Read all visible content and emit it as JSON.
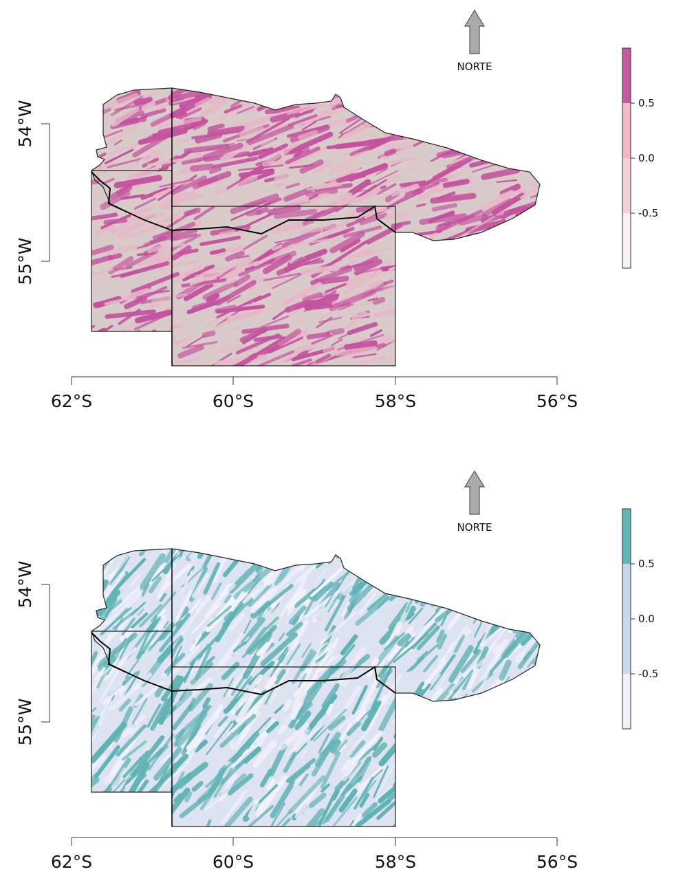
{
  "panels": [
    {
      "north": "NORTE",
      "x_labels": [
        "62°S",
        "60°S",
        "58°S",
        "56°S"
      ],
      "y_labels": [
        "54°W",
        "55°W"
      ],
      "legend": {
        "colors": [
          "#c45aa2",
          "#f1b9c8",
          "#f5cfd8",
          "#fbf1f4"
        ],
        "labels": [
          "0.5",
          "0.0",
          "-0.5"
        ]
      },
      "map_fill": "#d9cbc9",
      "map_accent": "#c4529f"
    },
    {
      "north": "NORTE",
      "x_labels": [
        "62°S",
        "60°S",
        "58°S",
        "56°S"
      ],
      "y_labels": [
        "54°W",
        "55°W"
      ],
      "legend": {
        "colors": [
          "#62b5b5",
          "#c7d6ea",
          "#cad8ec",
          "#f3f0f8"
        ],
        "labels": [
          "0.5",
          "0.0",
          "-0.5"
        ]
      },
      "map_fill": "#dde3f1",
      "map_accent": "#5fb3b4"
    }
  ]
}
